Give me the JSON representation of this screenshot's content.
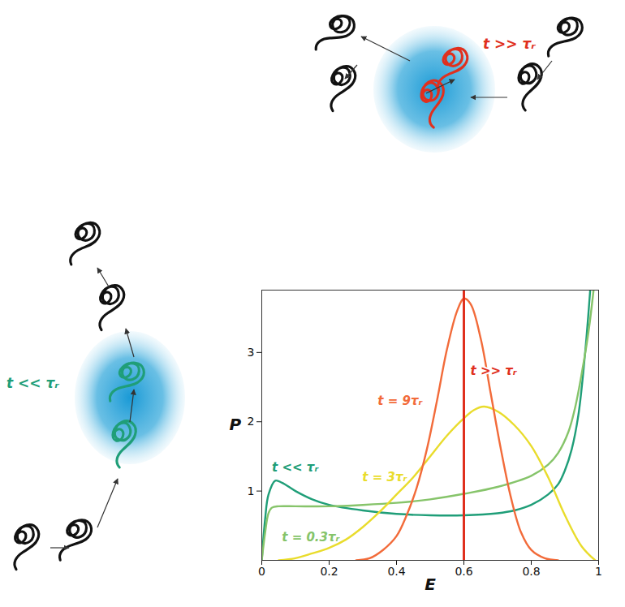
{
  "chart_data": {
    "type": "line",
    "xlabel": "E",
    "ylabel": "P",
    "xlim": [
      0,
      1
    ],
    "xticks": [
      0,
      0.2,
      0.4,
      0.6,
      0.8,
      1
    ],
    "ylim": [
      0,
      3.9
    ],
    "yticks": [
      1,
      2,
      3
    ],
    "series": [
      {
        "name": "t << τᵣ",
        "color": "#1f9e78",
        "x": [
          0,
          0.01,
          0.02,
          0.04,
          0.06,
          0.1,
          0.15,
          0.2,
          0.3,
          0.4,
          0.5,
          0.6,
          0.7,
          0.75,
          0.8,
          0.85,
          0.88,
          0.9,
          0.92,
          0.94,
          0.96,
          0.975
        ],
        "values": [
          0,
          0.6,
          0.95,
          1.15,
          1.12,
          1.0,
          0.88,
          0.8,
          0.72,
          0.67,
          0.65,
          0.65,
          0.68,
          0.72,
          0.8,
          0.95,
          1.1,
          1.3,
          1.6,
          2.1,
          3.0,
          3.9
        ]
      },
      {
        "name": "t = 0.3τᵣ",
        "color": "#86c46a",
        "x": [
          0,
          0.01,
          0.02,
          0.03,
          0.05,
          0.1,
          0.2,
          0.3,
          0.4,
          0.5,
          0.6,
          0.7,
          0.8,
          0.85,
          0.88,
          0.91,
          0.93,
          0.95,
          0.97,
          0.985
        ],
        "values": [
          0,
          0.4,
          0.68,
          0.76,
          0.78,
          0.78,
          0.78,
          0.8,
          0.83,
          0.88,
          0.96,
          1.06,
          1.22,
          1.38,
          1.55,
          1.85,
          2.2,
          2.7,
          3.3,
          3.9
        ]
      },
      {
        "name": "t = 3τᵣ",
        "color": "#e9dc2c",
        "x": [
          0.05,
          0.1,
          0.15,
          0.2,
          0.25,
          0.3,
          0.35,
          0.4,
          0.45,
          0.5,
          0.55,
          0.6,
          0.63,
          0.66,
          0.7,
          0.75,
          0.8,
          0.85,
          0.9,
          0.95,
          0.99
        ],
        "values": [
          0,
          0.03,
          0.1,
          0.18,
          0.3,
          0.48,
          0.7,
          0.95,
          1.2,
          1.5,
          1.8,
          2.05,
          2.17,
          2.22,
          2.15,
          1.95,
          1.65,
          1.2,
          0.65,
          0.2,
          0
        ]
      },
      {
        "name": "t = 9τᵣ",
        "color": "#f26b3a",
        "x": [
          0.28,
          0.32,
          0.36,
          0.4,
          0.43,
          0.46,
          0.49,
          0.52,
          0.55,
          0.58,
          0.6,
          0.62,
          0.65,
          0.68,
          0.71,
          0.74,
          0.77,
          0.8,
          0.84,
          0.88
        ],
        "values": [
          0,
          0.03,
          0.15,
          0.35,
          0.65,
          1.05,
          1.6,
          2.3,
          3.05,
          3.6,
          3.78,
          3.7,
          3.2,
          2.4,
          1.6,
          0.9,
          0.4,
          0.15,
          0.03,
          0
        ]
      },
      {
        "name": "t >> τᵣ",
        "type": "rule",
        "color": "#e0301e",
        "x": [
          0.6
        ]
      }
    ]
  },
  "diagrams": [
    {
      "label": "t >> τᵣ",
      "color": "#e0301e"
    },
    {
      "label": "t << τᵣ",
      "color": "#1f9e78"
    }
  ]
}
